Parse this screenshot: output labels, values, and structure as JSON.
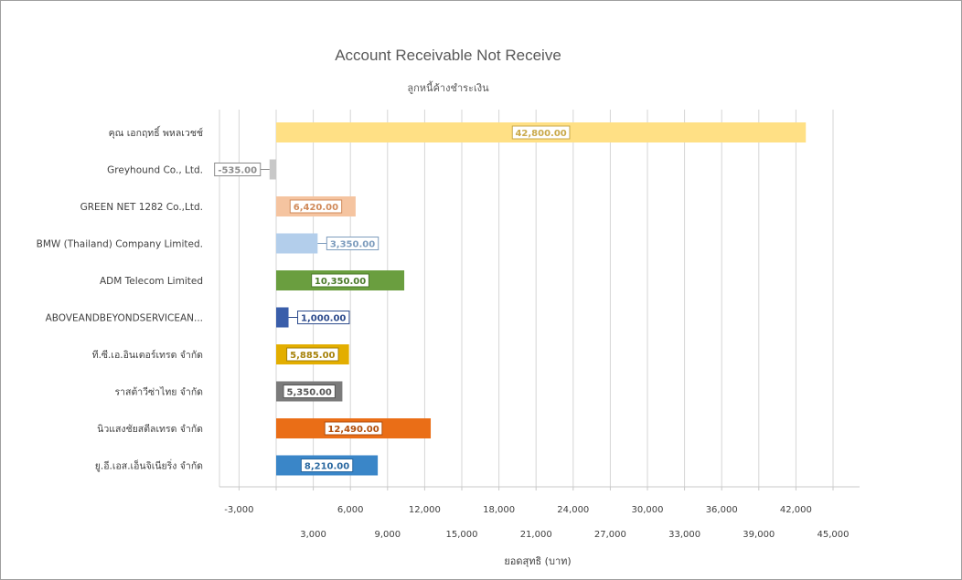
{
  "chart_data": {
    "type": "bar",
    "orientation": "horizontal",
    "title": "Account Receivable Not Receive",
    "subtitle": "ลูกหนี้ค้างชำระเงิน",
    "xlabel": "ยอดสุทธิ (บาท)",
    "xlim": [
      -4500,
      47000
    ],
    "grid": true,
    "categories": [
      "คุณ เอกฤทธิ์ พหลเวชช์",
      "Greyhound Co., Ltd.",
      "GREEN NET 1282  Co.,Ltd.",
      "BMW (Thailand) Company Limited.",
      "ADM Telecom Limited",
      "ABOVEANDBEYONDSERVICEAN...",
      "ที.ซี.เอ.อินเตอร์เทรด จำกัด",
      "ราสต้าวีซ่าไทย จำกัด",
      "นิวแสงชัยสตีลเทรด จำกัด",
      "ยู.อี.เอส.เอ็นจิเนียริ่ง จำกัด"
    ],
    "values": [
      42800,
      -535,
      6420,
      3350,
      10350,
      1000,
      5885,
      5350,
      12490,
      8210
    ],
    "value_labels": [
      "42,800.00",
      "-535.00",
      "6,420.00",
      "3,350.00",
      "10,350.00",
      "1,000.00",
      "5,885.00",
      "5,350.00",
      "12,490.00",
      "8,210.00"
    ],
    "colors": [
      "#FFE085",
      "#C8C8C8",
      "#F5C4A0",
      "#B3CEEB",
      "#6A9E3F",
      "#3A5EAA",
      "#E3AE00",
      "#7B7B7B",
      "#EA6E17",
      "#3A86C8"
    ],
    "label_colors": [
      "#C9A94A",
      "#8C8C8C",
      "#D08A5A",
      "#7D9CBD",
      "#4B7A2A",
      "#2C4A8C",
      "#A7820A",
      "#555555",
      "#B14E0C",
      "#2A68A0"
    ],
    "x_ticks_row1": [
      "-3,000",
      "6,000",
      "12,000",
      "18,000",
      "24,000",
      "30,000",
      "36,000",
      "42,000"
    ],
    "x_ticks_row1_values": [
      -3000,
      6000,
      12000,
      18000,
      24000,
      30000,
      36000,
      42000
    ],
    "x_ticks_row2": [
      "3,000",
      "9,000",
      "15,000",
      "21,000",
      "27,000",
      "33,000",
      "39,000",
      "45,000"
    ],
    "x_ticks_row2_values": [
      3000,
      9000,
      15000,
      21000,
      27000,
      33000,
      39000,
      45000
    ]
  }
}
